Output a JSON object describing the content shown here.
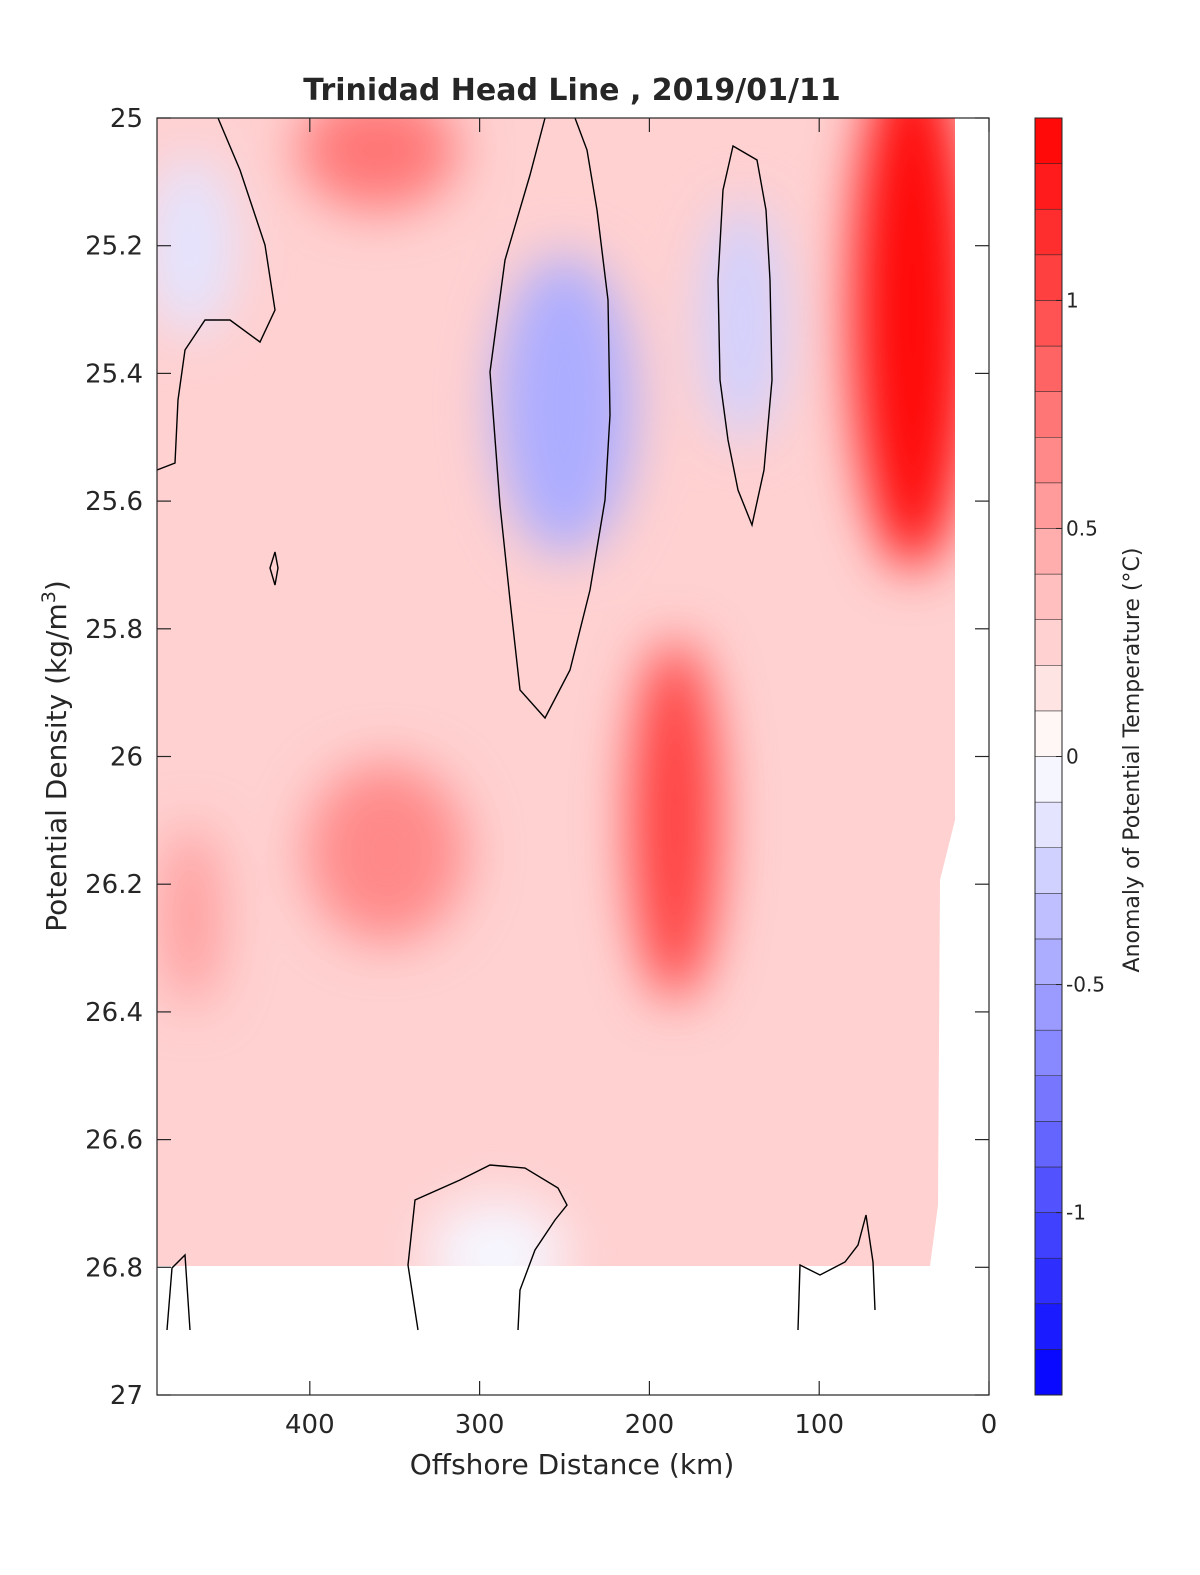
{
  "chart_data": {
    "type": "heatmap",
    "subtype": "filled-contour",
    "title": "Trinidad Head Line , 2019/01/11",
    "xlabel": "Offshore Distance (km)",
    "ylabel": "Potential Density (kg/m",
    "ylabel_superscript": "3",
    "ylabel_close": ")",
    "xlim": [
      490,
      0
    ],
    "x_reversed": true,
    "ylim": [
      25,
      27
    ],
    "y_reversed": true,
    "xticks": [
      400,
      300,
      200,
      100,
      0
    ],
    "yticks": [
      25,
      25.2,
      25.4,
      25.6,
      25.8,
      26,
      26.2,
      26.4,
      26.6,
      26.8,
      27
    ],
    "colorbar": {
      "label": "Anomaly of Potential Temperature (°C)",
      "range": [
        -1.4,
        1.4
      ],
      "ticks": [
        1,
        0.5,
        0,
        -0.5,
        -1
      ],
      "levels": 28,
      "neg_color": "#0000ff",
      "pos_color": "#ff0000",
      "zero_color": "#ffffff"
    },
    "zero_contour_color": "#000000",
    "grid": false,
    "features": [
      {
        "x": 250,
        "y": 25.45,
        "value": -0.42,
        "note": "cold core"
      },
      {
        "x": 145,
        "y": 25.32,
        "value": -0.22,
        "note": "cold core"
      },
      {
        "x": 470,
        "y": 25.2,
        "value": -0.12,
        "note": "cold patch"
      },
      {
        "x": 290,
        "y": 26.78,
        "value": -0.08,
        "note": "cold patch"
      },
      {
        "x": 45,
        "y": 25.3,
        "value": 1.4,
        "note": "warm core"
      },
      {
        "x": 185,
        "y": 26.1,
        "value": 1.0,
        "note": "warm core"
      },
      {
        "x": 360,
        "y": 25.05,
        "value": 0.75,
        "note": "warm patch"
      },
      {
        "x": 355,
        "y": 26.15,
        "value": 0.6,
        "note": "warm patch"
      },
      {
        "x": 470,
        "y": 26.25,
        "value": 0.55,
        "note": "warm patch"
      }
    ]
  }
}
